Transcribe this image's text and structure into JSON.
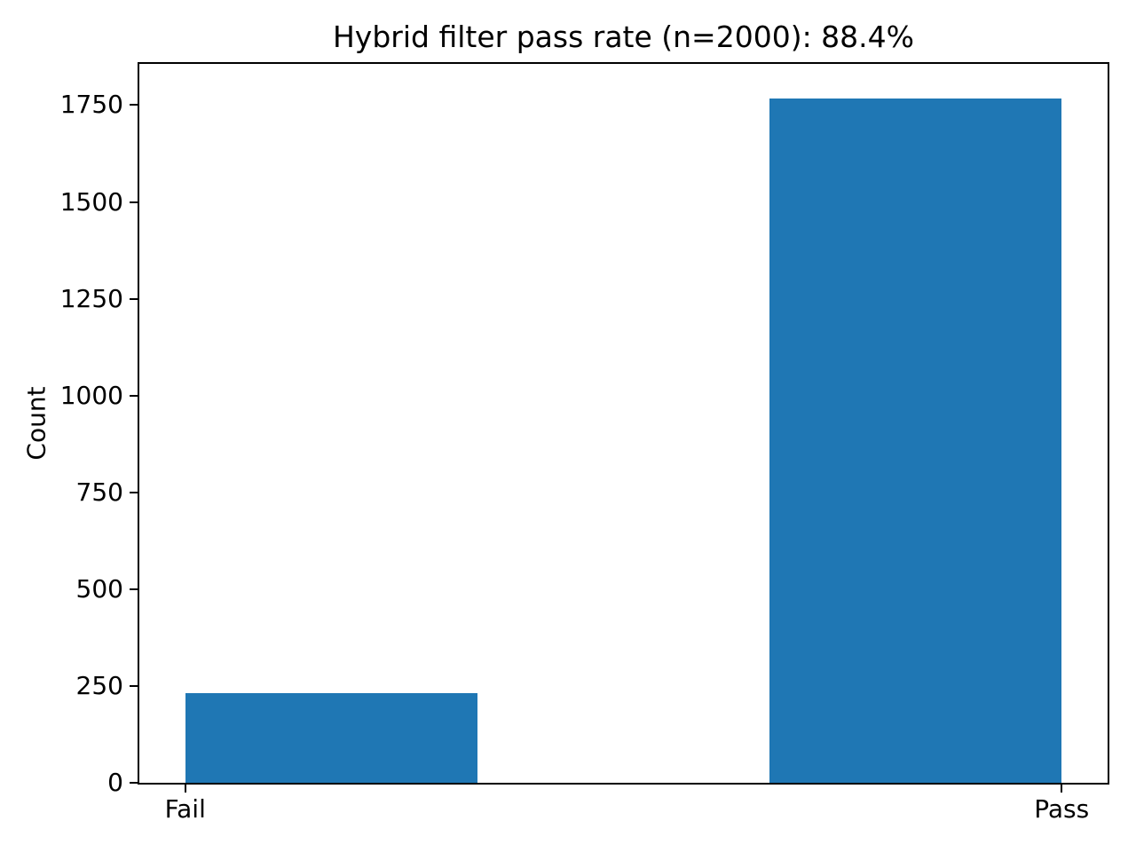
{
  "chart_data": {
    "type": "bar",
    "title": "Hybrid filter pass rate (n=2000): 88.4%",
    "n_total": 2000,
    "pass_rate_pct": 88.4,
    "xlabel": "",
    "ylabel": "Count",
    "categories": [
      "Fail",
      "Pass"
    ],
    "values": [
      232,
      1768
    ],
    "bar_color": "#1f77b4",
    "x_tick_positions": [
      0,
      1
    ],
    "bar_spans": [
      [
        0.0,
        0.3333
      ],
      [
        0.6667,
        1.0
      ]
    ],
    "xlim": [
      -0.0524,
      1.0524
    ],
    "ylim": [
      0,
      1856.4
    ],
    "y_ticks": [
      0,
      250,
      500,
      750,
      1000,
      1250,
      1500,
      1750
    ],
    "grid": false,
    "legend": "none",
    "frame_color": "#000000",
    "background_color": "#ffffff"
  }
}
